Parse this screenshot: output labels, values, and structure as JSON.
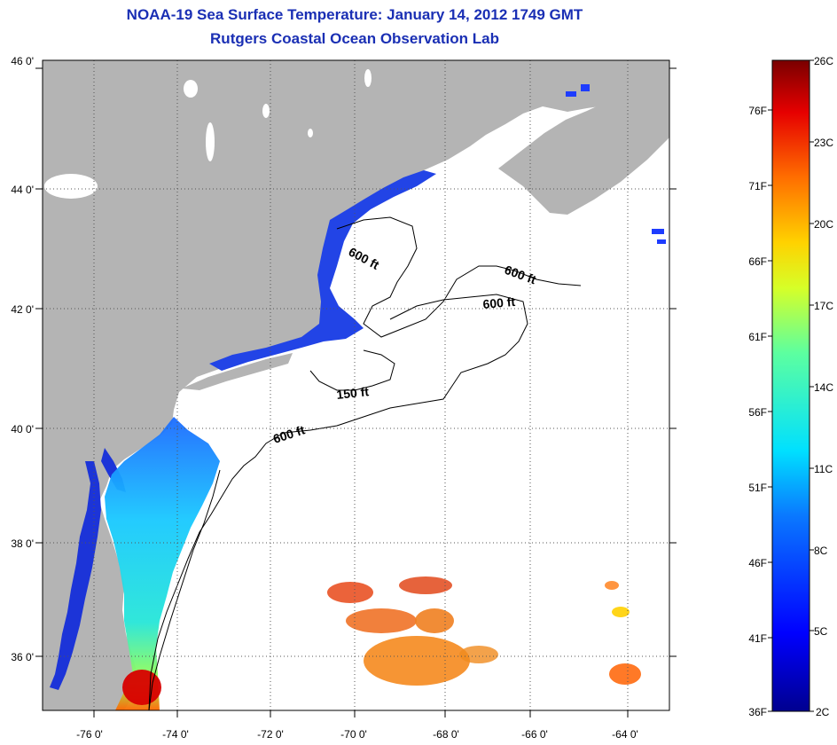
{
  "header": {
    "title": "NOAA-19 Sea Surface Temperature:  January 14, 2012 1749 GMT",
    "subtitle": "Rutgers Coastal Ocean Observation Lab"
  },
  "map": {
    "lat_labels": [
      "46 0'",
      "44 0'",
      "42 0'",
      "40 0'",
      "38 0'",
      "36 0'"
    ],
    "lon_labels": [
      "-76 0'",
      "-74 0'",
      "-72 0'",
      "-70 0'",
      "-68 0'",
      "-66 0'",
      "-64 0'"
    ],
    "contours": [
      {
        "label": "600 ft"
      },
      {
        "label": "600 ft"
      },
      {
        "label": "600 ft"
      },
      {
        "label": "150 ft"
      },
      {
        "label": "600 ft"
      }
    ],
    "colors": {
      "land": "#b4b4b4",
      "ocean": "#ffffff",
      "title": "#1a2fb4"
    }
  },
  "colorbar": {
    "celsius_labels": [
      "26C",
      "23C",
      "20C",
      "17C",
      "14C",
      "11C",
      "8C",
      "5C",
      "2C"
    ],
    "fahrenheit_labels": [
      "76F",
      "71F",
      "66F",
      "61F",
      "56F",
      "51F",
      "46F",
      "41F",
      "36F"
    ]
  }
}
